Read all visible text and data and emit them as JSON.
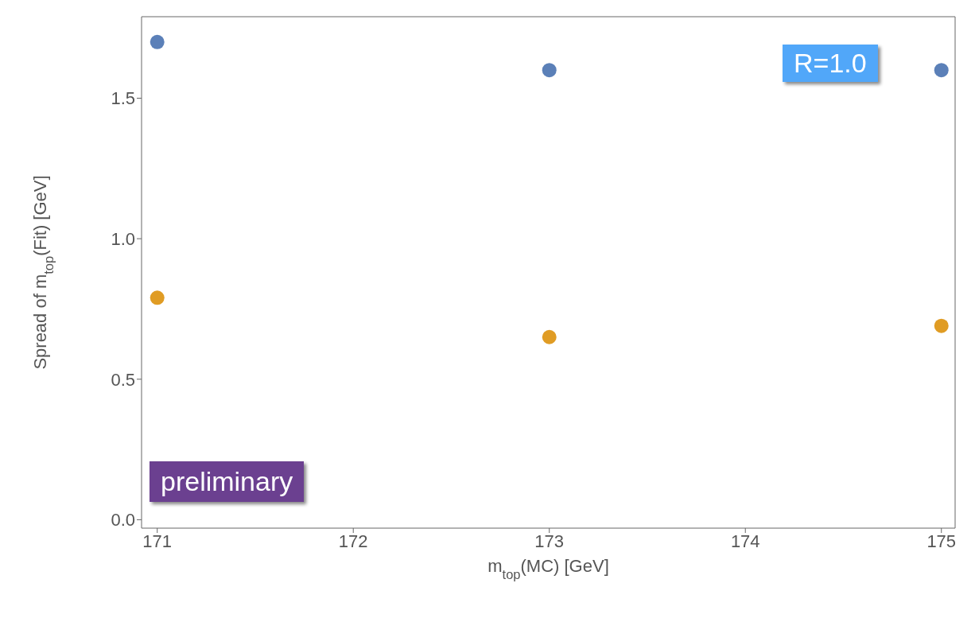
{
  "chart_data": {
    "type": "scatter",
    "xlabel": "m$_{top}$(MC) [GeV]",
    "ylabel": "Spread of m$_{top}$(Fit) [GeV]",
    "x": [
      171,
      173,
      175
    ],
    "series": [
      {
        "color": "#5b80b8",
        "values": [
          1.7,
          1.6,
          1.6
        ]
      },
      {
        "color": "#e09c24",
        "values": [
          0.79,
          0.65,
          0.69
        ]
      }
    ],
    "xlim": [
      170.92,
      175.07
    ],
    "xticks": [
      171,
      172,
      173,
      174,
      175
    ],
    "ylim": [
      -0.03,
      1.79
    ],
    "yticks": [
      {
        "value": 0,
        "label": "0.0"
      },
      {
        "value": 0.5,
        "label": "0.5"
      },
      {
        "value": 1,
        "label": "1.0"
      },
      {
        "value": 1.5,
        "label": "1.5"
      }
    ],
    "grid": false,
    "legend": false,
    "marker": "circle",
    "annotations": [
      "R=1.0",
      "preliminary"
    ]
  }
}
